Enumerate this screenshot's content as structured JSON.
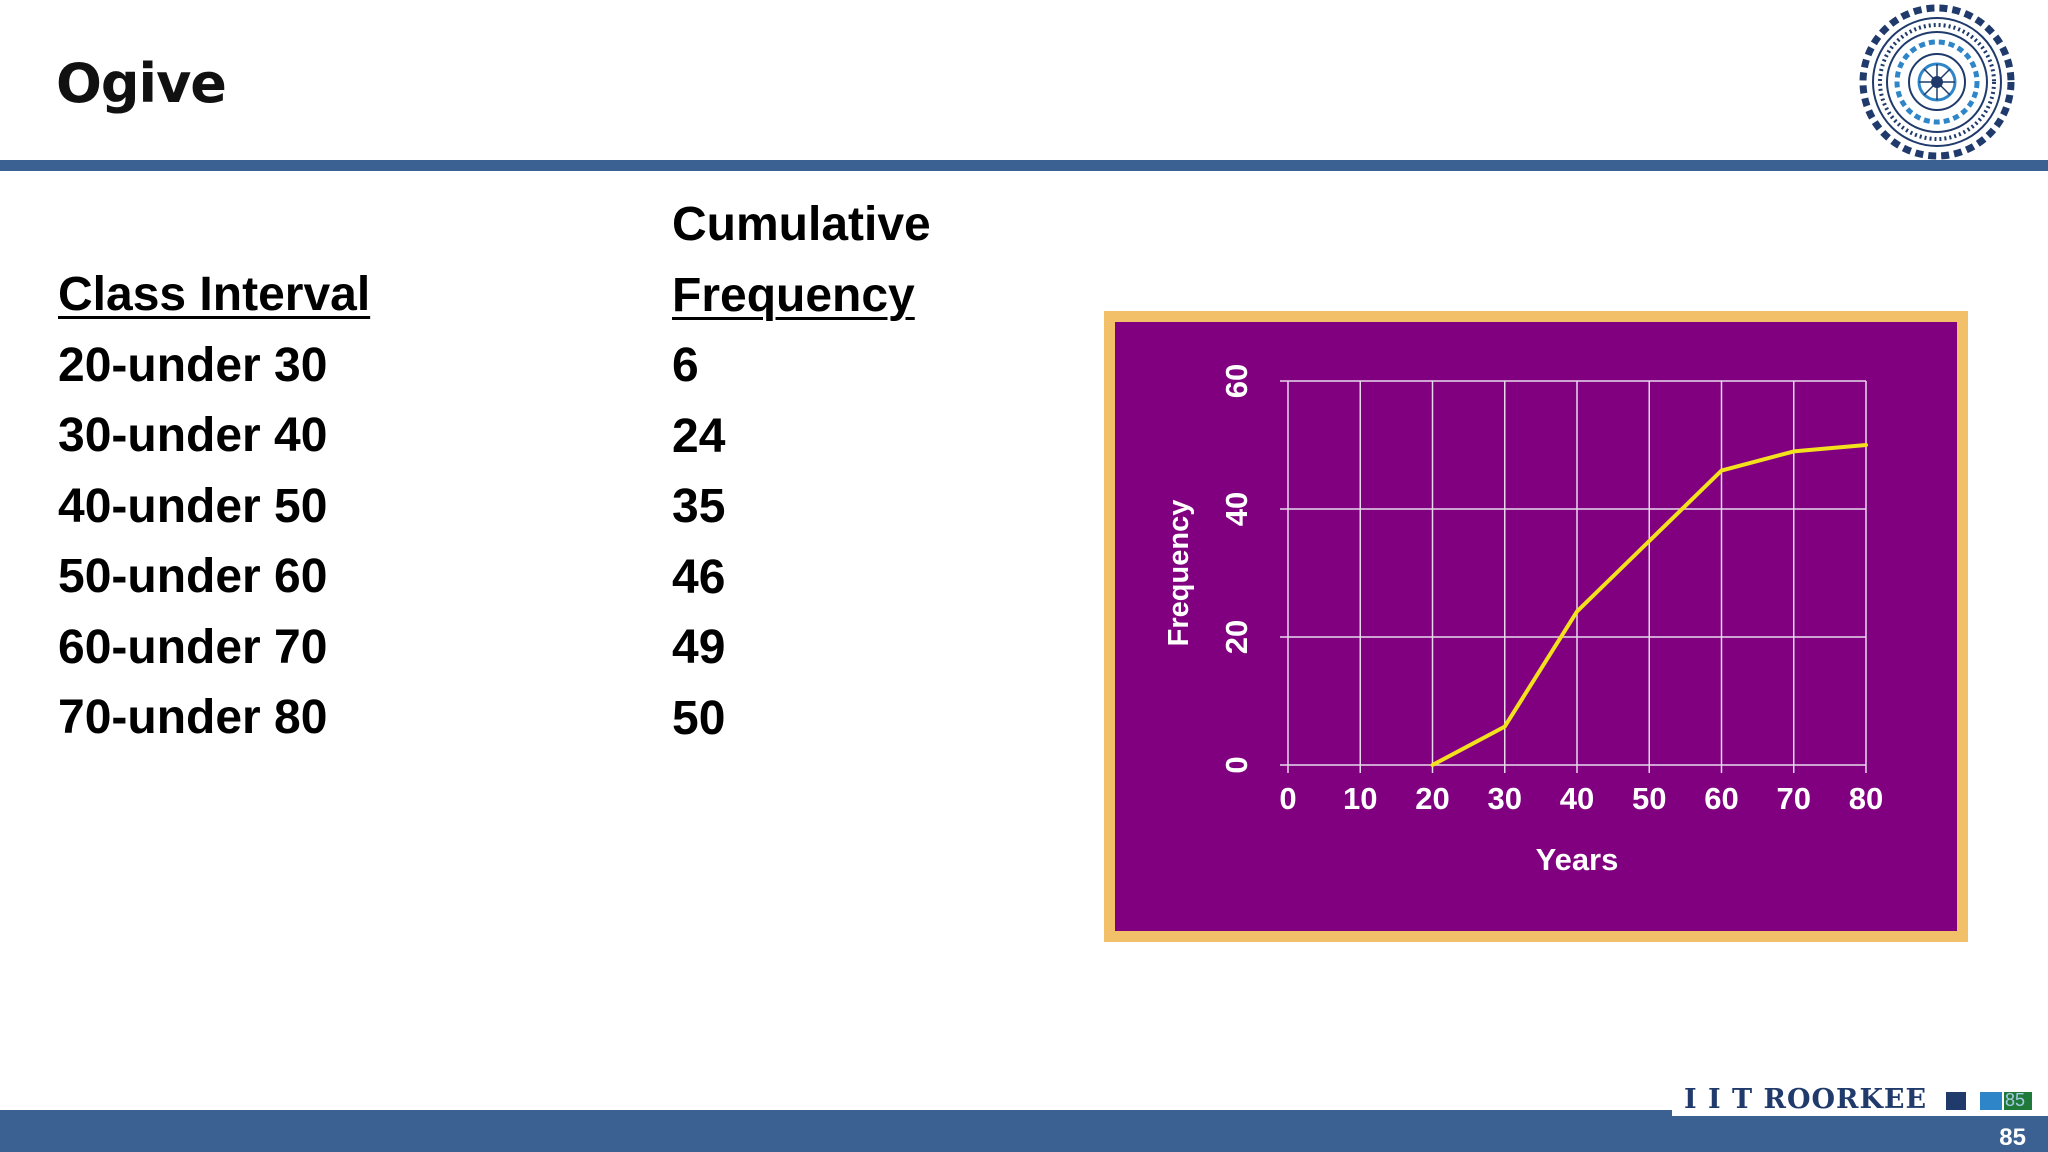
{
  "slide": {
    "title": "Ogive",
    "page_number": "85"
  },
  "table": {
    "header_col1": "Class Interval",
    "header_col2_line1": "Cumulative",
    "header_col2_line2": "Frequency",
    "rows": [
      {
        "interval": "20-under 30",
        "cumulative": "6"
      },
      {
        "interval": "30-under 40",
        "cumulative": "24"
      },
      {
        "interval": "40-under 50",
        "cumulative": "35"
      },
      {
        "interval": "50-under 60",
        "cumulative": "46"
      },
      {
        "interval": "60-under 70",
        "cumulative": "49"
      },
      {
        "interval": "70-under 80",
        "cumulative": "50"
      }
    ]
  },
  "footer": {
    "brand": "I I T ROORKEE",
    "small_number": "85"
  },
  "chart_data": {
    "type": "line",
    "title": "",
    "xlabel": "Years",
    "ylabel": "Frequency",
    "x": [
      20,
      30,
      40,
      50,
      60,
      70,
      80
    ],
    "series": [
      {
        "values": [
          0,
          6,
          24,
          35,
          46,
          49,
          50
        ]
      }
    ],
    "xlim": [
      0,
      80
    ],
    "ylim": [
      0,
      60
    ],
    "xticks": [
      0,
      10,
      20,
      30,
      40,
      50,
      60,
      70,
      80
    ],
    "yticks": [
      0,
      20,
      40,
      60
    ],
    "grid": true,
    "colors": {
      "background": "#800080",
      "border": "#f3c06a",
      "line": "#f2e11c",
      "grid": "#e8d8ec",
      "text": "#ffffff"
    }
  }
}
